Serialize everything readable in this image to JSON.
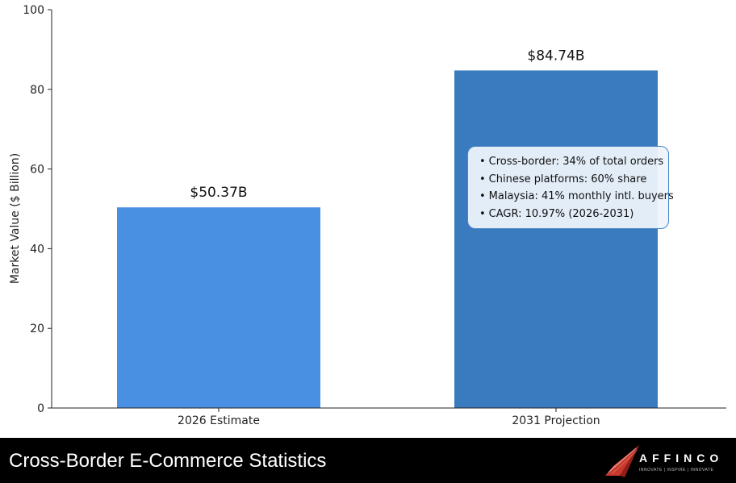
{
  "chart_data": {
    "type": "bar",
    "categories": [
      "2026 Estimate",
      "2031 Projection"
    ],
    "values": [
      50.37,
      84.74
    ],
    "value_labels": [
      "$50.37B",
      "$84.74B"
    ],
    "colors": [
      "#4a90e2",
      "#3a7bbf"
    ],
    "ylabel": "Market Value ($ Billion)",
    "xlabel": "",
    "ylim": [
      0,
      100
    ],
    "yticks": [
      0,
      20,
      40,
      60,
      80,
      100
    ],
    "grid": false,
    "annotation": {
      "bullet": "•",
      "lines": [
        "Cross-border: 34% of total orders",
        "Chinese platforms: 60% share",
        "Malaysia: 41% monthly intl. buyers",
        "CAGR: 10.97% (2026-2031)"
      ]
    }
  },
  "footer": {
    "title": "Cross-Border E-Commerce Statistics",
    "logo_text": "AFFINCO",
    "logo_tagline": "INNOVATE | INSPIRE | INNOVATE",
    "logo_icon": "paper-plane-icon",
    "logo_color": "#c8382b"
  }
}
